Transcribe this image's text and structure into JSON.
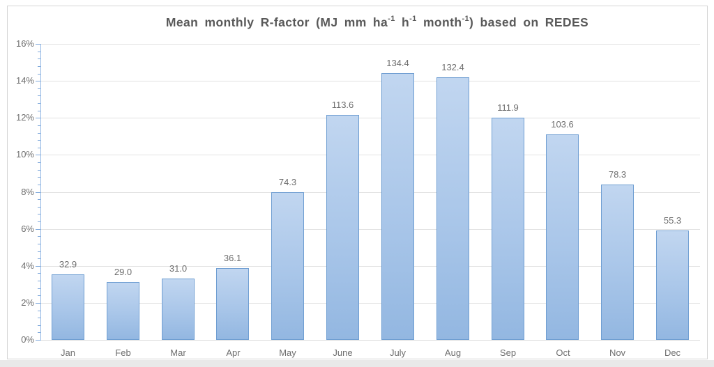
{
  "chart_data": {
    "type": "bar",
    "title": "Mean monthly R-factor (MJ mm ha-1 h-1 month-1) based on REDES",
    "title_parts": [
      {
        "text": "Mean monthly R-factor (MJ mm ha"
      },
      {
        "text": "-1",
        "sup": true
      },
      {
        "text": " h"
      },
      {
        "text": "-1",
        "sup": true
      },
      {
        "text": " month"
      },
      {
        "text": "-1",
        "sup": true
      },
      {
        "text": ") based on REDES"
      }
    ],
    "categories": [
      "Jan",
      "Feb",
      "Mar",
      "Apr",
      "May",
      "June",
      "July",
      "Aug",
      "Sep",
      "Oct",
      "Nov",
      "Dec"
    ],
    "values": [
      32.9,
      29.0,
      31.0,
      36.1,
      74.3,
      113.6,
      134.4,
      132.4,
      111.9,
      103.6,
      78.3,
      55.3
    ],
    "value_labels": [
      "32.9",
      "29.0",
      "31.0",
      "36.1",
      "74.3",
      "113.6",
      "134.4",
      "132.4",
      "111.9",
      "103.6",
      "78.3",
      "55.3"
    ],
    "xlabel": "",
    "ylabel": "",
    "y_axis": {
      "unit": "%",
      "min": 0,
      "max": 16,
      "major_step": 2,
      "minor_step": 0.4,
      "tick_labels": [
        "0%",
        "2%",
        "4%",
        "6%",
        "8%",
        "10%",
        "12%",
        "14%",
        "16%"
      ]
    },
    "bars_show_percent_of_total": true,
    "grid": "horizontal-major",
    "legend": "none",
    "colors": {
      "bar_fill_top": "#c1d6f0",
      "bar_fill_bottom": "#93b7e1",
      "bar_border": "#6f9ed2",
      "gridline": "#e2e2e2",
      "y_axis_line": "#8fb6e4",
      "x_axis_line": "#d9d9d9",
      "tick_mark": "#7fa9dc",
      "axis_label": "#6e6e6e",
      "title": "#595959",
      "frame_border": "#d4d4d4",
      "outer_strip": "#e9e9e9"
    }
  }
}
